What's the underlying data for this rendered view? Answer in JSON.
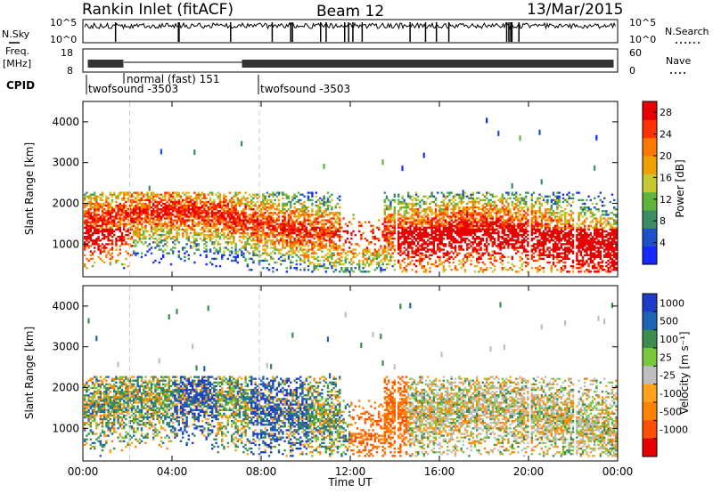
{
  "header": {
    "station": "Rankin Inlet (fitACF)",
    "beam": "Beam 12",
    "date": "13/Mar/2015"
  },
  "summary_panel": {
    "nsky_label": "N.Sky",
    "nsky_ticks": [
      "10^5",
      "10^0"
    ],
    "nsearch_label": "N.Search",
    "nsearch_ticks": [
      "10^5",
      "10^0"
    ],
    "freq_label_1": "Freq.",
    "freq_label_2": "[MHz]",
    "freq_ticks": [
      "18",
      "8"
    ],
    "nave_label": "Nave",
    "nave_ticks": [
      "60",
      "0"
    ],
    "cpid_label": "CPID",
    "cpid_segments": [
      "twofsound -3503",
      "normal (fast) 151",
      "twofsound -3503"
    ]
  },
  "chart_data": [
    {
      "type": "heatmap",
      "title": "",
      "xlabel": "",
      "ylabel": "Slant Range [km]",
      "xlim": [
        0,
        24
      ],
      "ylim": [
        200,
        4500
      ],
      "x_ticks": [
        "00:00",
        "04:00",
        "08:00",
        "12:00",
        "16:00",
        "20:00",
        "00:00"
      ],
      "y_ticks": [
        "1000",
        "2000",
        "3000",
        "4000"
      ],
      "colorbar": {
        "label": "Power [dB]",
        "ticks": [
          "4",
          "8",
          "12",
          "16",
          "20",
          "24",
          "28"
        ],
        "colors": [
          "#1428ff",
          "#1e50c8",
          "#3c8c64",
          "#5fb43c",
          "#c8c832",
          "#f0a000",
          "#ff7800",
          "#ff3200",
          "#e60000"
        ]
      },
      "description_of_field": "Strong backscatter band ~500-2200 km slant range throughout the day; red (25-30 dB) near 500-1300 km from 00:00-02:00 and 14:00-24:00."
    },
    {
      "type": "heatmap",
      "title": "",
      "xlabel": "Time UT",
      "ylabel": "Slant Range [km]",
      "xlim": [
        0,
        24
      ],
      "ylim": [
        200,
        4500
      ],
      "x_ticks": [
        "00:00",
        "04:00",
        "08:00",
        "12:00",
        "16:00",
        "20:00",
        "00:00"
      ],
      "y_ticks": [
        "1000",
        "2000",
        "3000",
        "4000"
      ],
      "colorbar": {
        "label": "Velocity [m s⁻¹]",
        "ticks": [
          "1000",
          "500",
          "100",
          "25",
          "-25",
          "-100",
          "-500",
          "-1000"
        ],
        "colors": [
          "#1e3cc8",
          "#1e64b4",
          "#3c8c50",
          "#78c83c",
          "#bebebe",
          "#ffa01e",
          "#ff8200",
          "#ff5000",
          "#e60000"
        ]
      }
    }
  ]
}
